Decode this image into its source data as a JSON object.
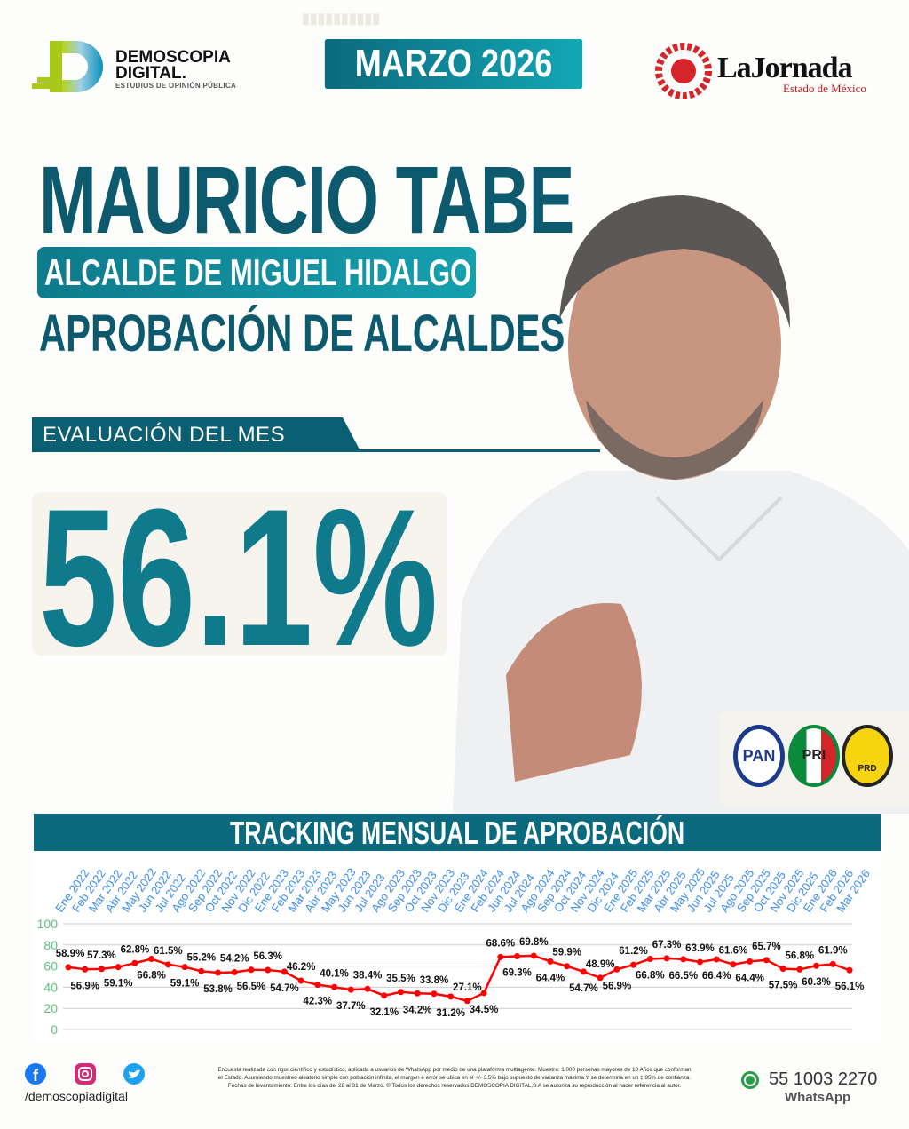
{
  "header": {
    "brand_line1": "DEMOSCOPIA",
    "brand_line2": "DIGITAL.",
    "brand_tagline": "ESTUDIOS DE OPINIÓN PÚBLICA",
    "date": "MARZO 2026",
    "partner_name": "LaJornada",
    "partner_sub": "Estado de México"
  },
  "hero": {
    "name": "MAURICIO TABE",
    "role": "ALCALDE DE MIGUEL HIDALGO",
    "subtitle": "APROBACIÓN DE ALCALDES",
    "eval_label": "EVALUACIÓN DEL MES",
    "approval": "56.1%"
  },
  "parties": [
    "PAN",
    "PRI",
    "PRD"
  ],
  "colors": {
    "primary": "#0d5a6e",
    "accent": "#0f7a8c",
    "line": "#ff0000",
    "axis_ticks": "#5ac27a",
    "x_labels": "#3d8ef0"
  },
  "chart_data": {
    "type": "line",
    "title": "TRACKING MENSUAL DE APROBACIÓN",
    "categories": [
      "Ene 2022",
      "Feb 2022",
      "Mar 2022",
      "Abr 2022",
      "May 2022",
      "Jun 2022",
      "Jul 2022",
      "Ago 2022",
      "Sep 2022",
      "Oct 2022",
      "Nov 2022",
      "Dic 2022",
      "Ene 2023",
      "Feb 2023",
      "Mar 2023",
      "Abr 2023",
      "May 2023",
      "Jun 2023",
      "Jul 2023",
      "Ago 2023",
      "Sep 2023",
      "Oct 2023",
      "Nov 2023",
      "Dic 2023",
      "Ene 2024",
      "Feb 2024",
      "Jun 2024",
      "Jul 2024",
      "Ago 2024",
      "Sep 2024",
      "Oct 2024",
      "Nov 2024",
      "Dic 2024",
      "Ene 2025",
      "Feb 2025",
      "Mar 2025",
      "Abr 2025",
      "May 2025",
      "Jun 2025",
      "Jul 2025",
      "Ago 2025",
      "Sep 2025",
      "Oct 2025",
      "Nov 2025",
      "Dic 2025",
      "Ene 2026",
      "Feb 2026",
      "Mar 2026"
    ],
    "values": [
      58.9,
      56.9,
      57.3,
      59.1,
      62.8,
      66.8,
      61.5,
      59.1,
      55.2,
      53.8,
      54.2,
      56.5,
      56.3,
      54.7,
      46.2,
      42.3,
      40.1,
      37.7,
      38.4,
      32.1,
      35.5,
      34.2,
      33.8,
      31.2,
      27.1,
      34.5,
      68.6,
      69.3,
      69.8,
      64.4,
      59.9,
      54.7,
      48.9,
      56.9,
      61.2,
      66.8,
      67.3,
      66.5,
      63.9,
      66.4,
      61.6,
      64.4,
      65.7,
      57.5,
      56.8,
      60.3,
      61.9,
      56.1
    ],
    "ylim": [
      0,
      100
    ],
    "yticks": [
      0,
      20,
      40,
      60,
      80,
      100
    ],
    "grid": true,
    "legend": "none"
  },
  "footer": {
    "handle": "/demoscopiadigital",
    "disclaimer": "Encuesta realizada con rigor científico y estadístico, aplicada a usuarios de WhatsApp por medio de una plataforma multiagente. Muestra: 1,000 personas mayores de 18 Años que conforman el Estado. Asumiendo muestreo aleatorio simple con población infinita, el margen e error se ubica en el +/- 3.5% bajo supuesto de varianza máxima Y se determina en un ‡ 95% de confianza. Fechas de levantamiento: Entre los días del 28 al 31 de Marzo. © Todos los derechos reservados DEMOSCOPIA DIGITAL,S.A se autoriza su reproducción al hacer referencia al autor.",
    "phone": "55 1003 2270",
    "whatsapp": "WhatsApp"
  }
}
